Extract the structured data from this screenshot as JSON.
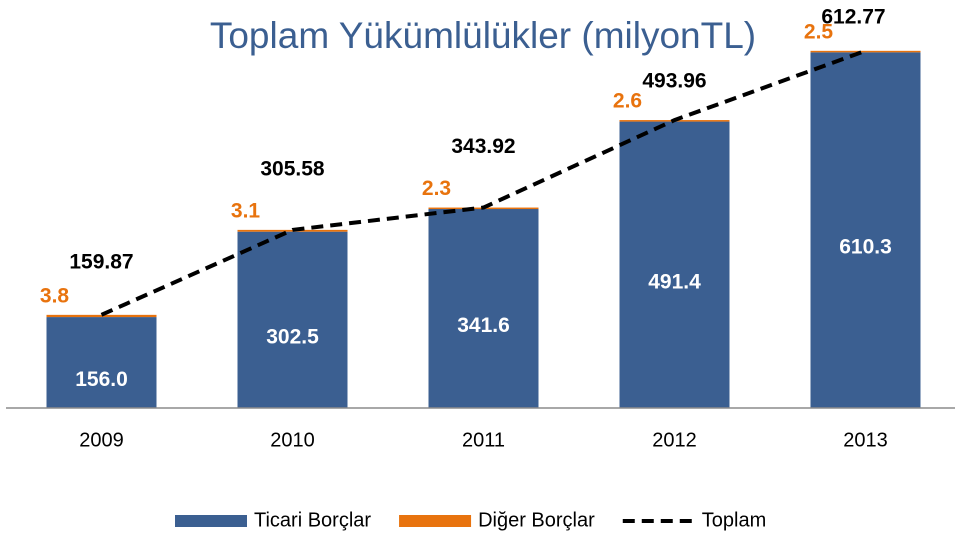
{
  "chart_data": {
    "type": "bar",
    "title": "Toplam Yükümlülükler (milyonTL)",
    "categories": [
      "2009",
      "2010",
      "2011",
      "2012",
      "2013"
    ],
    "ylim": [
      0,
      700
    ],
    "series": [
      {
        "name": "Ticari Borçlar",
        "color": "#3b5f91",
        "values": [
          156.0,
          302.5,
          341.6,
          491.4,
          610.3
        ],
        "value_labels": [
          "156.0",
          "302.5",
          "341.6",
          "491.4",
          "610.3"
        ]
      },
      {
        "name": "Diğer Borçlar",
        "color": "#e8730e",
        "values": [
          3.8,
          3.1,
          2.3,
          2.6,
          2.5
        ]
      },
      {
        "name": "Toplam",
        "type": "line",
        "color": "#000000",
        "values": [
          159.87,
          305.58,
          343.92,
          493.96,
          612.77
        ]
      }
    ]
  }
}
